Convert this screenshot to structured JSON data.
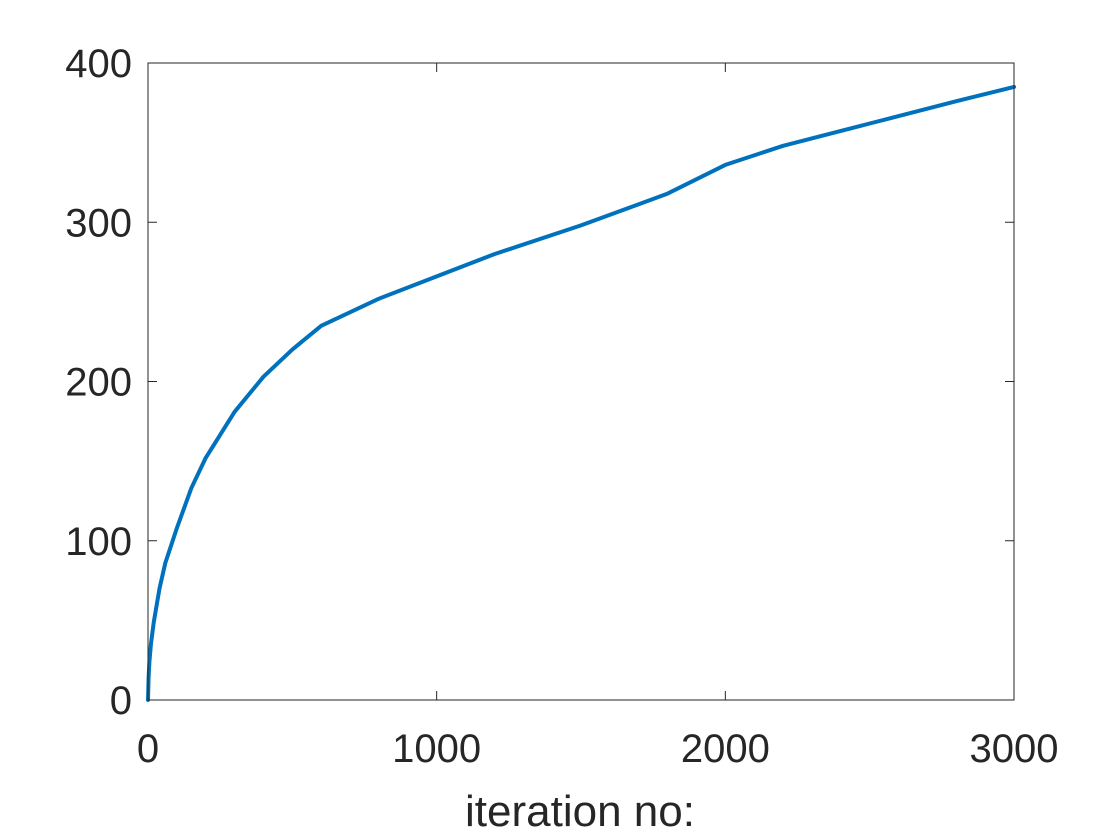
{
  "chart_data": {
    "type": "line",
    "title": "",
    "xlabel": "iteration no:",
    "ylabel": "",
    "xlim": [
      0,
      3000
    ],
    "ylim": [
      0,
      400
    ],
    "xticks": [
      0,
      1000,
      2000,
      3000
    ],
    "xtick_labels": [
      "0",
      "1000",
      "2000",
      "3000"
    ],
    "yticks": [
      0,
      100,
      200,
      300,
      400
    ],
    "ytick_labels": [
      "0",
      "100",
      "200",
      "300",
      "400"
    ],
    "grid": false,
    "box": true,
    "legend": "none",
    "colors": {
      "line": "#0072BD",
      "axes": "#262626",
      "text": "#262626",
      "background": "#ffffff"
    },
    "series": [
      {
        "color": "#0072BD",
        "x": [
          0,
          2,
          5,
          10,
          20,
          40,
          60,
          100,
          150,
          200,
          300,
          400,
          500,
          600,
          800,
          1000,
          1200,
          1500,
          1800,
          2000,
          2200,
          2500,
          2800,
          3000
        ],
        "y": [
          0,
          14,
          24,
          35,
          49,
          70,
          86,
          108,
          133,
          152,
          181,
          203,
          220,
          235,
          252,
          266,
          280,
          298,
          318,
          336,
          348,
          362,
          376,
          385
        ]
      }
    ]
  }
}
